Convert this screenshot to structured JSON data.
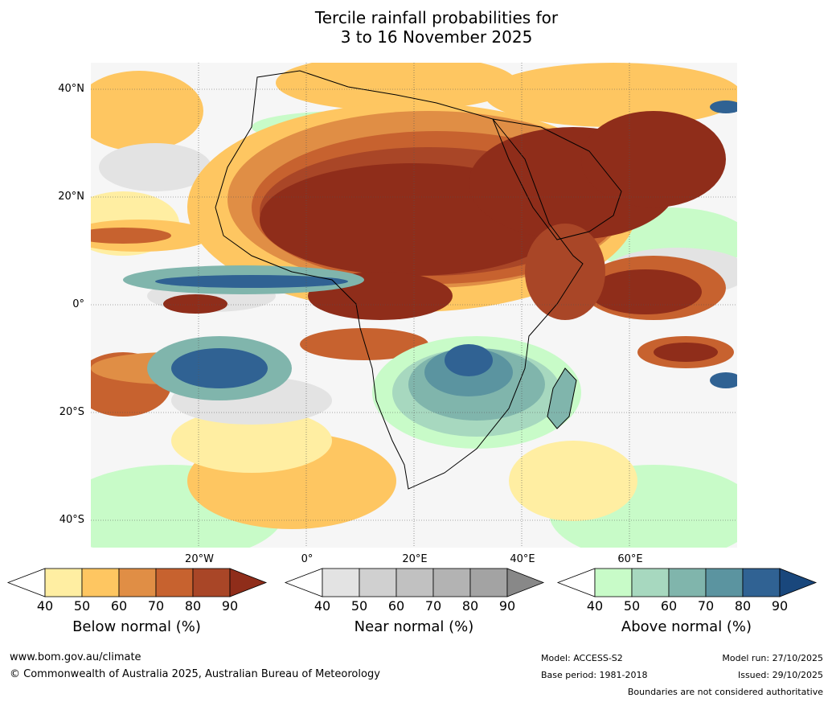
{
  "title": {
    "line1": "Tercile rainfall probabilities for",
    "line2": "3 to 16 November 2025"
  },
  "axes": {
    "lat_labels": [
      "40°N",
      "20°N",
      "0°",
      "20°S",
      "40°S"
    ],
    "lon_labels": [
      "20°W",
      "0°",
      "20°E",
      "40°E",
      "60°E"
    ]
  },
  "legends": [
    {
      "title": "Below normal (%)",
      "ticks": [
        "40",
        "50",
        "60",
        "70",
        "80",
        "90"
      ],
      "colors": [
        "#ffeea2",
        "#fec661",
        "#e08e45",
        "#c7622f",
        "#a94627",
        "#8f2d1a"
      ]
    },
    {
      "title": "Near normal (%)",
      "ticks": [
        "40",
        "50",
        "60",
        "70",
        "80",
        "90"
      ],
      "colors": [
        "#e3e3e3",
        "#d0d0d0",
        "#c1c1c1",
        "#b3b3b3",
        "#a3a3a3",
        "#888888"
      ]
    },
    {
      "title": "Above normal (%)",
      "ticks": [
        "40",
        "50",
        "60",
        "70",
        "80",
        "90"
      ],
      "colors": [
        "#c8fbc8",
        "#a7d8bf",
        "#80b5ac",
        "#5b94a0",
        "#306293",
        "#19477c"
      ]
    }
  ],
  "footer": {
    "website": "www.bom.gov.au/climate",
    "copyright": "© Commonwealth of Australia 2025, Australian Bureau of Meteorology",
    "model": "Model: ACCESS-S2",
    "base_period": "Base period: 1981-2018",
    "model_run": "Model run: 27/10/2025",
    "issued": "Issued: 29/10/2025",
    "disclaimer": "Boundaries are not considered authoritative"
  },
  "map_colors": {
    "below_light": "#ffeea2",
    "below_50": "#fec661",
    "below_60": "#e08e45",
    "below_70": "#c7622f",
    "below_80": "#a94627",
    "below_90": "#8f2d1a",
    "near": "#e3e3e3",
    "near_50": "#d0d0d0",
    "above_40": "#c8fbc8",
    "above_50": "#a7d8bf",
    "above_60": "#80b5ac",
    "above_70": "#5b94a0",
    "above_80": "#306293",
    "above_90": "#19477c"
  }
}
